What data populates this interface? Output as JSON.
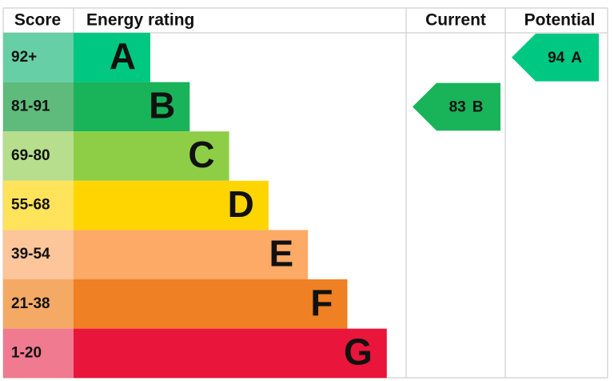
{
  "header": {
    "score": "Score",
    "energy_rating": "Energy rating",
    "current": "Current",
    "potential": "Potential"
  },
  "bands": [
    {
      "score": "92+",
      "rating": "A",
      "color": "#00c781",
      "score_color": "#66cfa6"
    },
    {
      "score": "81-91",
      "rating": "B",
      "color": "#19b459",
      "score_color": "#5ebb7c"
    },
    {
      "score": "69-80",
      "rating": "C",
      "color": "#8dce46",
      "score_color": "#b6de8c"
    },
    {
      "score": "55-68",
      "rating": "D",
      "color": "#ffd500",
      "score_color": "#ffe35a"
    },
    {
      "score": "39-54",
      "rating": "E",
      "color": "#fcaa65",
      "score_color": "#fcc59a"
    },
    {
      "score": "21-38",
      "rating": "F",
      "color": "#ef8023",
      "score_color": "#f4a965"
    },
    {
      "score": "1-20",
      "rating": "G",
      "color": "#e9153b",
      "score_color": "#f07a90"
    }
  ],
  "current": {
    "score": "83",
    "rating": "B"
  },
  "potential": {
    "score": "94",
    "rating": "A"
  }
}
